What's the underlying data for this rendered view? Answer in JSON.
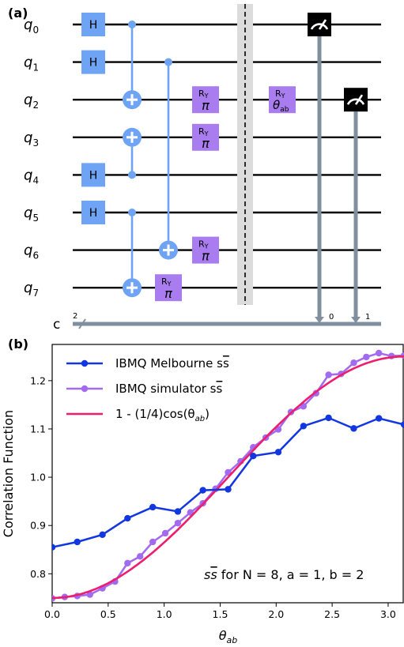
{
  "panel_a": {
    "label": "(a)",
    "qubits": [
      "0",
      "1",
      "2",
      "3",
      "4",
      "5",
      "6",
      "7"
    ],
    "qubit_prefix": "q",
    "classical_label": "c",
    "classical_count": "2",
    "measure_bits": [
      "0",
      "1"
    ],
    "gate_h": "H",
    "gate_ry_main": "R",
    "gate_ry_sub": "Y",
    "gate_ry_pi": "π",
    "gate_ry_theta": "θ",
    "gate_ry_theta_sub": "ab",
    "colors": {
      "h_gate": "#6fa4f5",
      "cnot": "#6fa4f5",
      "ry_gate": "#a97cf0",
      "barrier": "#dcdcdc",
      "measure": "#000000",
      "classical": "#7f8fa0"
    }
  },
  "panel_b": {
    "label": "(b)"
  },
  "chart_data": {
    "type": "line",
    "xlabel_main": "θ",
    "xlabel_sub": "ab",
    "ylabel": "Correlation Function",
    "xlim": [
      0,
      3.14159
    ],
    "ylim": [
      0.74,
      1.275
    ],
    "xticks": [
      "0.0",
      "0.5",
      "1.0",
      "1.5",
      "2.0",
      "2.5",
      "3.0"
    ],
    "yticks": [
      "0.8",
      "0.9",
      "1.0",
      "1.1",
      "1.2"
    ],
    "legend_position": "top-left",
    "annotation": {
      "prefix": "s",
      "rest": " for ",
      "n": "N = 8, ",
      "a": "a = 1, ",
      "b": "b = 2"
    },
    "series": [
      {
        "name": "IBMQ Melbourne s",
        "name_bar": "s",
        "color": "#1237e0",
        "x": [
          0.0,
          0.224,
          0.449,
          0.673,
          0.898,
          1.122,
          1.346,
          1.571,
          1.795,
          2.019,
          2.244,
          2.468,
          2.693,
          2.917,
          3.142
        ],
        "y": [
          0.855,
          0.866,
          0.881,
          0.915,
          0.938,
          0.929,
          0.973,
          0.975,
          1.044,
          1.052,
          1.106,
          1.123,
          1.101,
          1.122,
          1.109
        ]
      },
      {
        "name": "IBMQ simulator s",
        "name_bar": "s",
        "color": "#a26af0",
        "x": [
          0.0,
          0.112,
          0.224,
          0.337,
          0.449,
          0.561,
          0.673,
          0.785,
          0.898,
          1.01,
          1.122,
          1.234,
          1.346,
          1.459,
          1.571,
          1.683,
          1.795,
          1.907,
          2.019,
          2.132,
          2.244,
          2.356,
          2.468,
          2.58,
          2.693,
          2.805,
          2.917,
          3.03,
          3.142
        ],
        "y": [
          0.749,
          0.752,
          0.754,
          0.757,
          0.77,
          0.784,
          0.822,
          0.836,
          0.866,
          0.884,
          0.905,
          0.927,
          0.946,
          0.976,
          1.01,
          1.033,
          1.062,
          1.082,
          1.099,
          1.135,
          1.147,
          1.174,
          1.212,
          1.214,
          1.237,
          1.249,
          1.257,
          1.251,
          1.252
        ]
      },
      {
        "name": "1 - (1/4)cos(θ",
        "name_sub": "ab",
        "name_end": ")",
        "color": "#ee1e6e",
        "function": "1 - 0.25*cos(x)"
      }
    ]
  }
}
